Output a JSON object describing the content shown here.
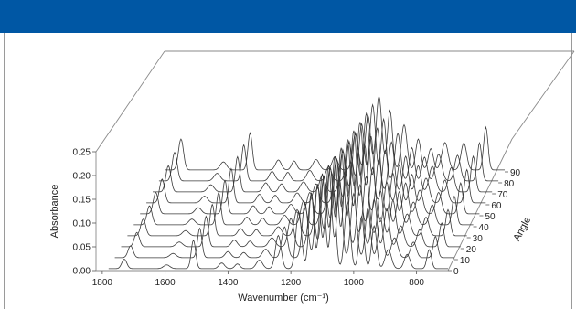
{
  "theme": {
    "header_color": "#0057a4",
    "trace_color": "#3a3a3a"
  },
  "chart_data": {
    "type": "line",
    "subtype": "3d-waterfall",
    "title": "",
    "xlabel": "Wavenumber (cm⁻¹)",
    "ylabel": "Absorbance",
    "zlabel": "Angle",
    "xlim": [
      1820,
      700
    ],
    "ylim": [
      0,
      0.25
    ],
    "x_ticks": [
      "1800",
      "1600",
      "1400",
      "1200",
      "1000",
      "800"
    ],
    "y_ticks": [
      "0.00",
      "0.05",
      "0.10",
      "0.15",
      "0.20",
      "0.25"
    ],
    "z_ticks": [
      "0",
      "10",
      "20",
      "30",
      "40",
      "50",
      "60",
      "70",
      "80",
      "90"
    ],
    "angles": [
      0,
      10,
      20,
      30,
      40,
      50,
      60,
      70,
      80,
      90
    ],
    "peaks_by_angle": [
      {
        "center": 1730,
        "width": 8,
        "heights": [
          0.02,
          0.025,
          0.03,
          0.035,
          0.04,
          0.045,
          0.05,
          0.055,
          0.06,
          0.065
        ]
      },
      {
        "center": 1595,
        "width": 10,
        "heights": [
          0.008,
          0.009,
          0.01,
          0.011,
          0.012,
          0.013,
          0.014,
          0.015,
          0.016,
          0.017
        ]
      },
      {
        "center": 1510,
        "width": 7,
        "heights": [
          0.06,
          0.062,
          0.064,
          0.066,
          0.068,
          0.07,
          0.072,
          0.074,
          0.076,
          0.078
        ]
      },
      {
        "center": 1420,
        "width": 9,
        "heights": [
          0.012,
          0.013,
          0.014,
          0.015,
          0.016,
          0.017,
          0.018,
          0.019,
          0.02,
          0.021
        ]
      },
      {
        "center": 1370,
        "width": 8,
        "heights": [
          0.01,
          0.011,
          0.012,
          0.013,
          0.014,
          0.015,
          0.016,
          0.017,
          0.018,
          0.019
        ]
      },
      {
        "center": 1300,
        "width": 10,
        "heights": [
          0.018,
          0.018,
          0.019,
          0.019,
          0.02,
          0.02,
          0.021,
          0.021,
          0.022,
          0.022
        ]
      },
      {
        "center": 1240,
        "width": 9,
        "heights": [
          0.07,
          0.065,
          0.06,
          0.055,
          0.05,
          0.045,
          0.04,
          0.035,
          0.03,
          0.028
        ]
      },
      {
        "center": 1175,
        "width": 9,
        "heights": [
          0.12,
          0.115,
          0.11,
          0.105,
          0.1,
          0.095,
          0.09,
          0.085,
          0.08,
          0.075
        ]
      },
      {
        "center": 1135,
        "width": 8,
        "heights": [
          0.16,
          0.155,
          0.15,
          0.145,
          0.14,
          0.135,
          0.13,
          0.125,
          0.12,
          0.115
        ]
      },
      {
        "center": 1100,
        "width": 9,
        "heights": [
          0.2,
          0.195,
          0.19,
          0.185,
          0.18,
          0.175,
          0.17,
          0.165,
          0.16,
          0.155
        ]
      },
      {
        "center": 1065,
        "width": 8,
        "heights": [
          0.17,
          0.165,
          0.16,
          0.155,
          0.15,
          0.145,
          0.14,
          0.135,
          0.13,
          0.125
        ]
      },
      {
        "center": 1020,
        "width": 9,
        "heights": [
          0.14,
          0.135,
          0.13,
          0.125,
          0.12,
          0.115,
          0.11,
          0.105,
          0.1,
          0.095
        ]
      },
      {
        "center": 975,
        "width": 8,
        "heights": [
          0.11,
          0.105,
          0.1,
          0.095,
          0.09,
          0.085,
          0.08,
          0.075,
          0.07,
          0.065
        ]
      },
      {
        "center": 935,
        "width": 8,
        "heights": [
          0.09,
          0.085,
          0.08,
          0.075,
          0.07,
          0.065,
          0.06,
          0.055,
          0.05,
          0.045
        ]
      },
      {
        "center": 890,
        "width": 10,
        "heights": [
          0.04,
          0.042,
          0.044,
          0.046,
          0.048,
          0.05,
          0.052,
          0.054,
          0.056,
          0.058
        ]
      },
      {
        "center": 830,
        "width": 9,
        "heights": [
          0.03,
          0.033,
          0.036,
          0.039,
          0.042,
          0.045,
          0.048,
          0.051,
          0.054,
          0.057
        ]
      },
      {
        "center": 760,
        "width": 7,
        "heights": [
          0.04,
          0.045,
          0.05,
          0.055,
          0.06,
          0.065,
          0.07,
          0.075,
          0.08,
          0.09
        ]
      }
    ],
    "grid": false,
    "legend": "none"
  }
}
